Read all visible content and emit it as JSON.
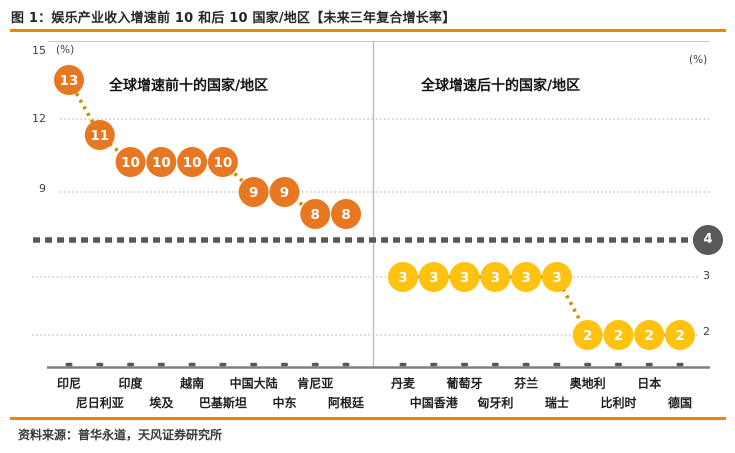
{
  "page": {
    "title": "图 1：娱乐产业收入增速前 10 和后 10 国家/地区【未来三年复合增长率】",
    "source": "资料来源：普华永道，天风证券研究所"
  },
  "chart_data": {
    "type": "scatter",
    "title": "娱乐产业收入增速前 10 和后 10 国家/地区【未来三年复合增长率】",
    "unit": "%",
    "grid": "horizontal-dotted",
    "ylim": [
      0,
      15
    ],
    "left_panel": {
      "label": "全球增速前十的国家/地区",
      "categories": [
        "印尼",
        "尼日利亚",
        "印度",
        "埃及",
        "越南",
        "巴基斯坦",
        "中国大陆",
        "中东",
        "肯尼亚",
        "阿根廷"
      ],
      "values": [
        13,
        11,
        10,
        10,
        10,
        10,
        9,
        9,
        8,
        8
      ],
      "marker_color": "#E87722"
    },
    "right_panel": {
      "label": "全球增速后十的国家/地区",
      "categories": [
        "丹麦",
        "中国香港",
        "葡萄牙",
        "匈牙利",
        "芬兰",
        "瑞士",
        "奥地利",
        "比利时",
        "日本",
        "德国"
      ],
      "values": [
        3,
        3,
        3,
        3,
        3,
        3,
        2,
        2,
        2,
        2
      ],
      "marker_color": "#FFC20E"
    },
    "reference_line": {
      "value": 4,
      "label": "4",
      "color": "#595959"
    },
    "left_axis": {
      "unit_label": "(%)",
      "ticks": [
        15,
        12,
        9
      ]
    },
    "right_axis": {
      "unit_label": "(%)",
      "ticks": [
        3,
        2
      ]
    },
    "connector_color": "#C79500",
    "accent_color": "#F08300"
  }
}
